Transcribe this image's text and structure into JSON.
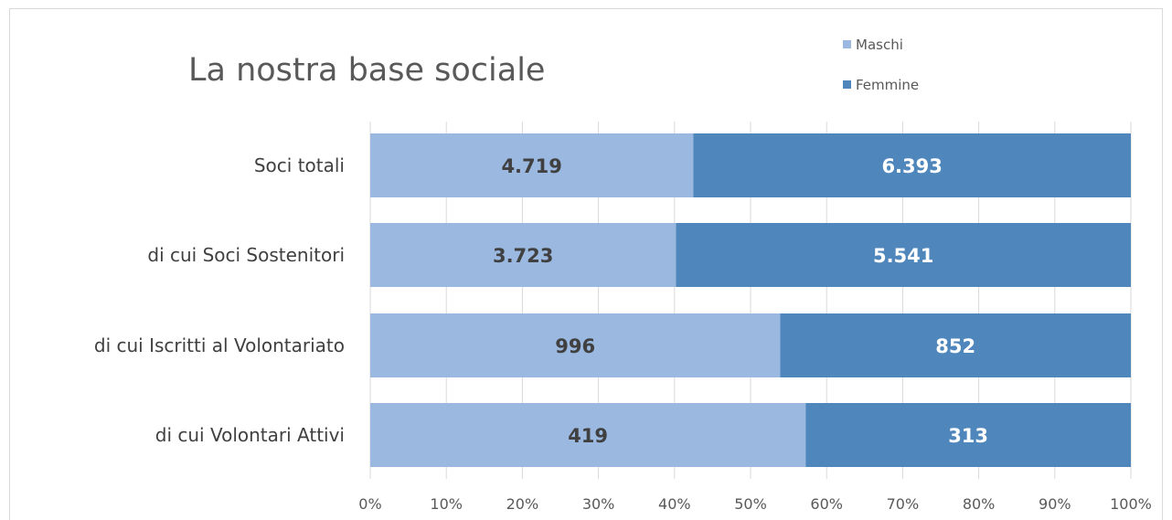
{
  "chart_data": {
    "type": "bar",
    "orientation": "horizontal",
    "stacked": "percent",
    "title": "La nostra base sociale",
    "categories": [
      "Soci totali",
      "di cui Soci Sostenitori",
      "di cui Iscritti al Volontariato",
      "di cui Volontari Attivi"
    ],
    "series": [
      {
        "name": "Maschi",
        "values": [
          4719,
          3723,
          996,
          419
        ],
        "labels": [
          "4.719",
          "3.723",
          "996",
          "419"
        ],
        "color": "#9ab8e0"
      },
      {
        "name": "Femmine",
        "values": [
          6393,
          5541,
          852,
          313
        ],
        "labels": [
          "6.393",
          "5.541",
          "852",
          "313"
        ],
        "color": "#4f87bd"
      }
    ],
    "x_ticks": [
      "0%",
      "10%",
      "20%",
      "30%",
      "40%",
      "50%",
      "60%",
      "70%",
      "80%",
      "90%",
      "100%"
    ],
    "xlim": [
      0,
      100
    ],
    "grid": true,
    "legend_position": "top-right"
  }
}
